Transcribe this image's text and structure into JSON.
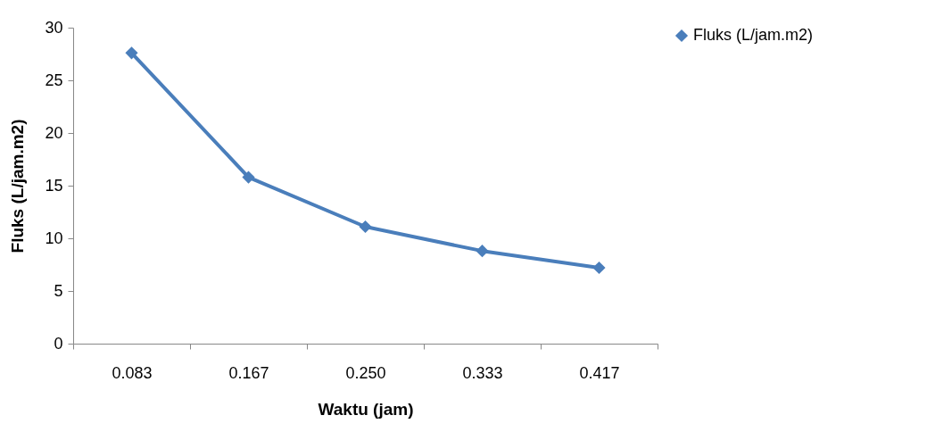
{
  "chart_data": {
    "type": "line",
    "xlabel": "Waktu (jam)",
    "ylabel": "Fluks (L/jam.m2)",
    "categories": [
      "0.083",
      "0.167",
      "0.250",
      "0.333",
      "0.417"
    ],
    "series": [
      {
        "name": "Fluks (L/jam.m2)",
        "color": "#4a7ebb",
        "values": [
          27.6,
          15.8,
          11.1,
          8.8,
          7.2
        ]
      }
    ],
    "ylim": [
      0,
      30
    ],
    "yticks": [
      0,
      5,
      10,
      15,
      20,
      25,
      30
    ],
    "grid": false,
    "legend": "right",
    "marker": "diamond",
    "line_style": "solid"
  }
}
